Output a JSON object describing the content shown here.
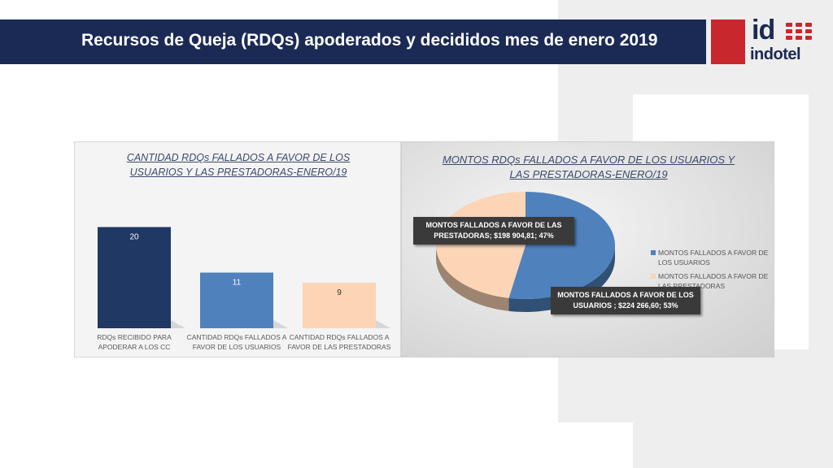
{
  "header": {
    "title": "Recursos de Queja (RDQs) apoderados y decididos mes de enero 2019"
  },
  "logo": {
    "mark": "id",
    "name": "indotel",
    "accent_color": "#c8282d",
    "brand_color": "#1b2a55"
  },
  "chart_data": [
    {
      "type": "bar",
      "title_lines": [
        "CANTIDAD RDQs FALLADOS A FAVOR DE LOS",
        "USUARIOS Y LAS PRESTADORAS-ENERO/19"
      ],
      "categories": [
        [
          "RDQs RECIBIDO PARA",
          "APODERAR A LOS CC"
        ],
        [
          "CANTIDAD RDQs FALLADOS A",
          "FAVOR DE LOS USUARIOS"
        ],
        [
          "CANTIDAD RDQs FALLADOS A",
          "FAVOR DE LAS PRESTADORAS"
        ]
      ],
      "values": [
        20,
        11,
        9
      ],
      "data_labels": [
        "20",
        "11",
        "9"
      ],
      "colors": [
        "#1f3864",
        "#4f81bd",
        "#fbd5b5"
      ],
      "ylim": [
        0,
        22
      ]
    },
    {
      "type": "pie",
      "title_lines": [
        "MONTOS RDQs FALLADOS A FAVOR DE LOS  USUARIOS Y",
        "LAS PRESTADORAS-ENERO/19"
      ],
      "slices": [
        {
          "label": "MONTOS  FALLADOS A FAVOR DE LOS USUARIOS",
          "value": 224266.6,
          "percent": 53,
          "color": "#4f81bd"
        },
        {
          "label": "MONTOS FALLADOS  A FAVOR DE LAS PRESTADORAS",
          "value": 198904.81,
          "percent": 47,
          "color": "#fbd5b5"
        }
      ],
      "callouts": [
        {
          "line1": "MONTOS FALLADOS  A FAVOR DE LAS",
          "line2": "PRESTADORAS; $198 904,81; 47%"
        },
        {
          "line1": "MONTOS  FALLADOS A FAVOR DE LOS",
          "line2": "USUARIOS ; $224 266,60; 53%"
        }
      ],
      "legend": [
        {
          "line1": "MONTOS  FALLADOS A FAVOR DE",
          "line2": "LOS USUARIOS",
          "color": "#4f81bd"
        },
        {
          "line1": "MONTOS FALLADOS  A FAVOR DE",
          "line2": "LAS PRESTADORAS",
          "color": "#fbd5b5"
        }
      ],
      "legend_position": "right"
    }
  ]
}
